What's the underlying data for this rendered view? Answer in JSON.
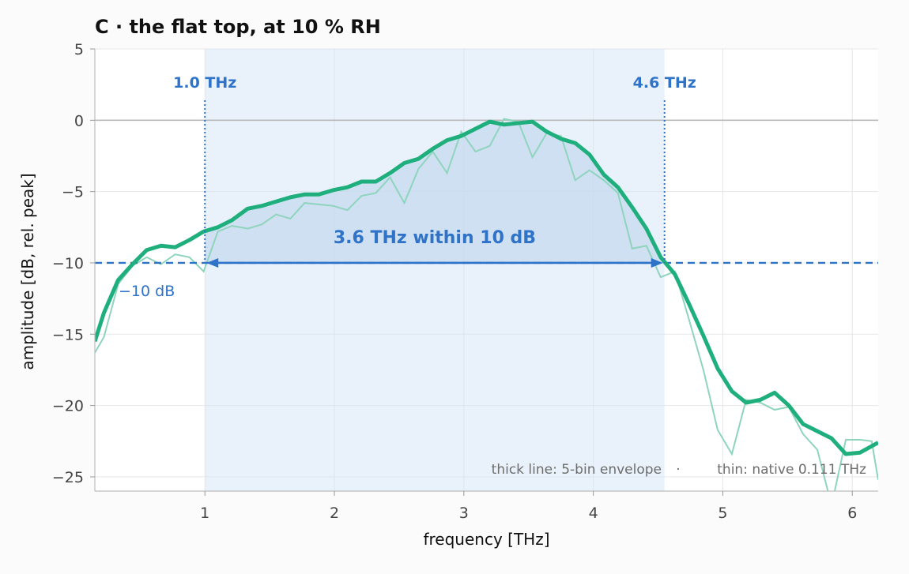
{
  "chart_data": {
    "type": "line",
    "title": "C · the flat top, at 10 % RH",
    "xlabel": "frequency [THz]",
    "ylabel": "amplitude [dB, rel. peak]",
    "xlim": [
      0.15,
      6.2
    ],
    "ylim": [
      -26,
      5
    ],
    "xticks": [
      1,
      2,
      3,
      4,
      5,
      6
    ],
    "xtick_labels": [
      "1",
      "2",
      "3",
      "4",
      "5",
      "6"
    ],
    "yticks": [
      5,
      0,
      -5,
      -10,
      -15,
      -20,
      -25
    ],
    "ytick_labels": [
      "5",
      "0",
      "−5",
      "−10",
      "−15",
      "−20",
      "−25"
    ],
    "grid": true,
    "band": {
      "x_start": 1.0,
      "x_end": 4.55,
      "label_start": "1.0 THz",
      "label_end": "4.6 THz"
    },
    "threshold": {
      "y": -10,
      "label": "−10 dB"
    },
    "span_annotation": "3.6 THz within 10 dB",
    "footnote": {
      "left": "thick line: 5-bin envelope",
      "sep": "·",
      "right": "thin: native 0.111 THz"
    },
    "series": [
      {
        "role": "envelope",
        "x": [
          0.15,
          0.22,
          0.33,
          0.44,
          0.55,
          0.66,
          0.77,
          0.88,
          0.99,
          1.1,
          1.21,
          1.33,
          1.44,
          1.55,
          1.66,
          1.77,
          1.88,
          1.99,
          2.1,
          2.21,
          2.32,
          2.43,
          2.54,
          2.65,
          2.76,
          2.87,
          2.98,
          3.09,
          3.2,
          3.31,
          3.42,
          3.53,
          3.64,
          3.75,
          3.86,
          3.97,
          4.08,
          4.19,
          4.3,
          4.41,
          4.52,
          4.63,
          4.74,
          4.85,
          4.96,
          5.07,
          5.18,
          5.29,
          5.4,
          5.51,
          5.62,
          5.73,
          5.84,
          5.95,
          6.06,
          6.2
        ],
        "y": [
          -15.5,
          -13.5,
          -11.2,
          -10.1,
          -9.1,
          -8.8,
          -8.9,
          -8.4,
          -7.8,
          -7.5,
          -7.0,
          -6.2,
          -6.0,
          -5.7,
          -5.4,
          -5.2,
          -5.2,
          -4.9,
          -4.7,
          -4.3,
          -4.3,
          -3.7,
          -3.0,
          -2.7,
          -2.0,
          -1.4,
          -1.1,
          -0.6,
          -0.1,
          -0.3,
          -0.2,
          -0.1,
          -0.8,
          -1.3,
          -1.6,
          -2.4,
          -3.8,
          -4.7,
          -6.1,
          -7.6,
          -9.6,
          -10.8,
          -12.9,
          -15.1,
          -17.4,
          -19.0,
          -19.8,
          -19.6,
          -19.1,
          -20.0,
          -21.3,
          -21.8,
          -22.3,
          -23.4,
          -23.3,
          -22.6
        ]
      },
      {
        "role": "native",
        "x": [
          0.15,
          0.22,
          0.33,
          0.44,
          0.55,
          0.66,
          0.77,
          0.88,
          0.99,
          1.1,
          1.21,
          1.33,
          1.44,
          1.55,
          1.66,
          1.77,
          1.88,
          1.99,
          2.1,
          2.21,
          2.32,
          2.43,
          2.54,
          2.65,
          2.76,
          2.87,
          2.98,
          3.09,
          3.2,
          3.31,
          3.42,
          3.53,
          3.64,
          3.75,
          3.86,
          3.97,
          4.08,
          4.19,
          4.3,
          4.41,
          4.52,
          4.63,
          4.74,
          4.85,
          4.96,
          5.07,
          5.18,
          5.29,
          5.4,
          5.51,
          5.62,
          5.73,
          5.84,
          5.95,
          6.06,
          6.15,
          6.2
        ],
        "y": [
          -16.3,
          -15.2,
          -11.5,
          -10.2,
          -9.6,
          -10.1,
          -9.4,
          -9.6,
          -10.6,
          -7.8,
          -7.4,
          -7.6,
          -7.3,
          -6.6,
          -6.9,
          -5.8,
          -5.9,
          -6.0,
          -6.3,
          -5.3,
          -5.1,
          -4.0,
          -5.8,
          -3.4,
          -2.2,
          -3.7,
          -0.8,
          -2.2,
          -1.8,
          0.1,
          -0.1,
          -2.6,
          -0.9,
          -1.1,
          -4.2,
          -3.5,
          -4.2,
          -5.1,
          -9.0,
          -8.8,
          -11.0,
          -10.6,
          -14.0,
          -17.5,
          -21.7,
          -23.4,
          -19.6,
          -19.8,
          -20.3,
          -20.1,
          -22.0,
          -23.1,
          -27.0,
          -22.4,
          -22.4,
          -22.5,
          -25.2
        ]
      }
    ]
  }
}
